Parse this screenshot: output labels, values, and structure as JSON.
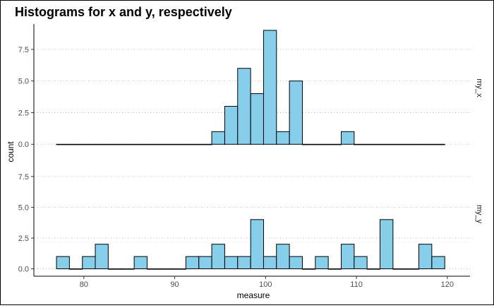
{
  "chart_data": {
    "type": "bar",
    "title": "Histograms for x and y, respectively",
    "xlabel": "measure",
    "ylabel": "count",
    "xlim": [
      74.5,
      122.5
    ],
    "ylim": [
      -0.6,
      9.5
    ],
    "bin_width": 1.424,
    "x_ticks": [
      80,
      90,
      100,
      110,
      120
    ],
    "x_tick_labels": [
      "80",
      "90",
      "100",
      "110",
      "120"
    ],
    "y_ticks": [
      0,
      2.5,
      5,
      7.5
    ],
    "y_tick_labels": [
      "0.0",
      "2.5",
      "5.0",
      "7.5"
    ],
    "grid": "horizontal dotted",
    "fill_color": "#87CEEB",
    "outline_color": "#000000",
    "panels": [
      {
        "name": "my_x",
        "bins": [
          {
            "x": 77.7,
            "count": 0
          },
          {
            "x": 79.12,
            "count": 0
          },
          {
            "x": 80.55,
            "count": 0
          },
          {
            "x": 81.97,
            "count": 0
          },
          {
            "x": 83.4,
            "count": 0
          },
          {
            "x": 84.82,
            "count": 0
          },
          {
            "x": 86.25,
            "count": 0
          },
          {
            "x": 87.67,
            "count": 0
          },
          {
            "x": 89.1,
            "count": 0
          },
          {
            "x": 90.52,
            "count": 0
          },
          {
            "x": 91.94,
            "count": 0
          },
          {
            "x": 93.37,
            "count": 0
          },
          {
            "x": 94.79,
            "count": 1
          },
          {
            "x": 96.22,
            "count": 3
          },
          {
            "x": 97.64,
            "count": 6
          },
          {
            "x": 99.07,
            "count": 4
          },
          {
            "x": 100.49,
            "count": 9
          },
          {
            "x": 101.91,
            "count": 1
          },
          {
            "x": 103.34,
            "count": 5
          },
          {
            "x": 104.76,
            "count": 0
          },
          {
            "x": 106.19,
            "count": 0
          },
          {
            "x": 107.61,
            "count": 0
          },
          {
            "x": 109.04,
            "count": 1
          },
          {
            "x": 110.46,
            "count": 0
          },
          {
            "x": 111.88,
            "count": 0
          },
          {
            "x": 113.31,
            "count": 0
          },
          {
            "x": 114.73,
            "count": 0
          },
          {
            "x": 116.16,
            "count": 0
          },
          {
            "x": 117.58,
            "count": 0
          },
          {
            "x": 119.01,
            "count": 0
          }
        ]
      },
      {
        "name": "my_y",
        "bins": [
          {
            "x": 77.7,
            "count": 1
          },
          {
            "x": 79.12,
            "count": 0
          },
          {
            "x": 80.55,
            "count": 1
          },
          {
            "x": 81.97,
            "count": 2
          },
          {
            "x": 83.4,
            "count": 0
          },
          {
            "x": 84.82,
            "count": 0
          },
          {
            "x": 86.25,
            "count": 1
          },
          {
            "x": 87.67,
            "count": 0
          },
          {
            "x": 89.1,
            "count": 0
          },
          {
            "x": 90.52,
            "count": 0
          },
          {
            "x": 91.94,
            "count": 1
          },
          {
            "x": 93.37,
            "count": 1
          },
          {
            "x": 94.79,
            "count": 2
          },
          {
            "x": 96.22,
            "count": 1
          },
          {
            "x": 97.64,
            "count": 1
          },
          {
            "x": 99.07,
            "count": 4
          },
          {
            "x": 100.49,
            "count": 1
          },
          {
            "x": 101.91,
            "count": 2
          },
          {
            "x": 103.34,
            "count": 1
          },
          {
            "x": 104.76,
            "count": 0
          },
          {
            "x": 106.19,
            "count": 1
          },
          {
            "x": 107.61,
            "count": 0
          },
          {
            "x": 109.04,
            "count": 2
          },
          {
            "x": 110.46,
            "count": 1
          },
          {
            "x": 111.88,
            "count": 0
          },
          {
            "x": 113.31,
            "count": 4
          },
          {
            "x": 114.73,
            "count": 0
          },
          {
            "x": 116.16,
            "count": 0
          },
          {
            "x": 117.58,
            "count": 2
          },
          {
            "x": 119.01,
            "count": 1
          }
        ]
      }
    ]
  }
}
